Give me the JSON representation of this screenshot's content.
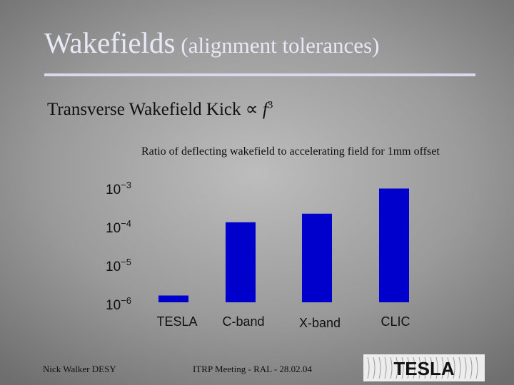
{
  "slide": {
    "title_main": "Wakefields",
    "title_sub": "(alignment tolerances)",
    "kick_prefix": "Transverse Wakefield Kick ",
    "kick_symbol": "∝ ",
    "kick_var": "f",
    "kick_exp": "3"
  },
  "footer": {
    "author": "Nick Walker DESY",
    "meeting": "ITRP Meeting - RAL - 28.02.04",
    "logo_text": "TESLA"
  },
  "colors": {
    "bar": "#0000cc",
    "axis_text": "#111111"
  },
  "chart_data": {
    "type": "bar",
    "title": "Ratio of deflecting wakefield to accelerating field for 1mm offset",
    "categories": [
      "TESLA",
      "C-band",
      "X-band",
      "CLIC"
    ],
    "values": [
      1.5e-06,
      0.00012,
      0.0002,
      0.0009
    ],
    "yscale": "log",
    "ylim": [
      1e-06,
      0.001
    ],
    "yticks": [
      {
        "mantissa": "10",
        "exp": "−3"
      },
      {
        "mantissa": "10",
        "exp": "−4"
      },
      {
        "mantissa": "10",
        "exp": "−5"
      },
      {
        "mantissa": "10",
        "exp": "−6"
      }
    ],
    "xlabel": "",
    "ylabel": "",
    "grid": false,
    "legend": false
  }
}
